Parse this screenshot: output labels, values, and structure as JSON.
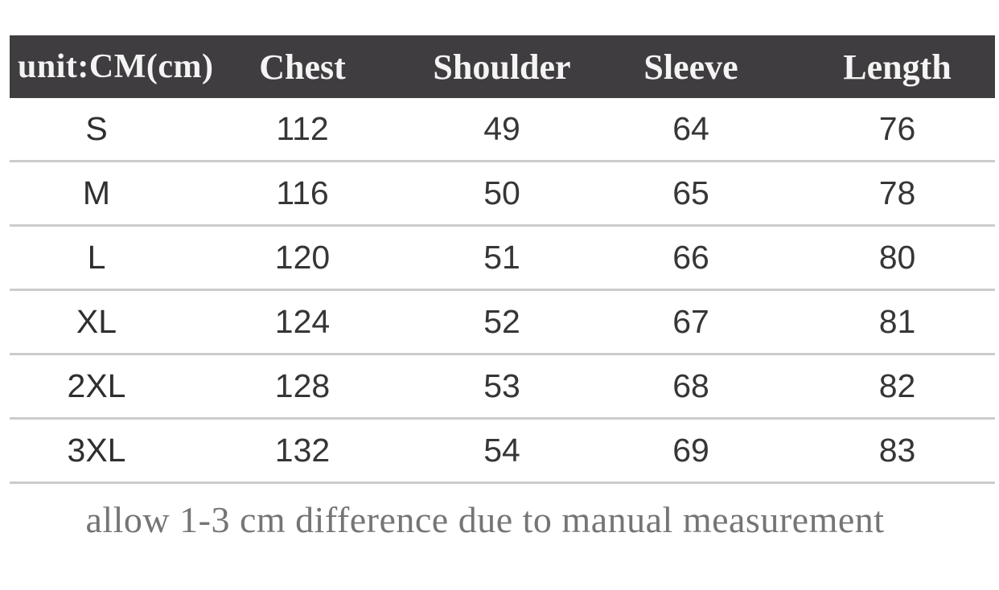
{
  "chart_data": {
    "type": "table",
    "unit_header": "unit:CM(cm)",
    "columns": [
      "Chest",
      "Shoulder",
      "Sleeve",
      "Length"
    ],
    "rows": [
      {
        "size": "S",
        "chest": 112,
        "shoulder": 49,
        "sleeve": 64,
        "length": 76
      },
      {
        "size": "M",
        "chest": 116,
        "shoulder": 50,
        "sleeve": 65,
        "length": 78
      },
      {
        "size": "L",
        "chest": 120,
        "shoulder": 51,
        "sleeve": 66,
        "length": 80
      },
      {
        "size": "XL",
        "chest": 124,
        "shoulder": 52,
        "sleeve": 67,
        "length": 81
      },
      {
        "size": "2XL",
        "chest": 128,
        "shoulder": 53,
        "sleeve": 68,
        "length": 82
      },
      {
        "size": "3XL",
        "chest": 132,
        "shoulder": 54,
        "sleeve": 69,
        "length": 83
      }
    ],
    "note": "allow 1-3 cm difference due to manual measurement",
    "layout": {
      "header_background": "#3f3d3f",
      "header_text_color": "#f5f4f4",
      "row_separator_color": "#cccccc",
      "body_text_color": "#363636",
      "note_text_color": "#757575",
      "grid": "horizontal-rules-only"
    }
  }
}
